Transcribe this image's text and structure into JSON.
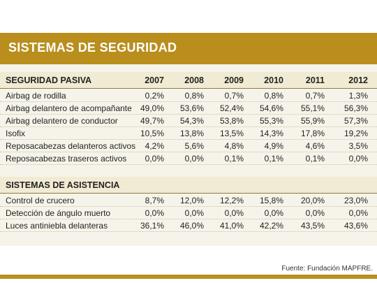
{
  "title": "SISTEMAS DE SEGURIDAD",
  "source": "Fuente: Fundación MAPFRE.",
  "chart_data": {
    "type": "table",
    "years": [
      "2007",
      "2008",
      "2009",
      "2010",
      "2011",
      "2012"
    ],
    "sections": [
      {
        "name": "SEGURIDAD PASIVA",
        "rows": [
          {
            "label": "Airbag de rodilla",
            "values": [
              "0,2%",
              "0,8%",
              "0,7%",
              "0,8%",
              "0,7%",
              "1,3%"
            ]
          },
          {
            "label": "Airbag delantero de acompañante",
            "values": [
              "49,0%",
              "53,6%",
              "52,4%",
              "54,6%",
              "55,1%",
              "56,3%"
            ]
          },
          {
            "label": "Airbag delantero  de conductor",
            "values": [
              "49,7%",
              "54,3%",
              "53,8%",
              "55,3%",
              "55,9%",
              "57,3%"
            ]
          },
          {
            "label": "Isofix",
            "values": [
              "10,5%",
              "13,8%",
              "13,5%",
              "14,3%",
              "17,8%",
              "19,2%"
            ]
          },
          {
            "label": "Reposacabezas delanteros activos",
            "values": [
              "4,2%",
              "5,6%",
              "4,8%",
              "4,9%",
              "4,6%",
              "3,5%"
            ]
          },
          {
            "label": "Reposacabezas traseros activos",
            "values": [
              "0,0%",
              "0,0%",
              "0,1%",
              "0,1%",
              "0,1%",
              "0,0%"
            ]
          }
        ]
      },
      {
        "name": "SISTEMAS DE ASISTENCIA",
        "rows": [
          {
            "label": "Control de crucero",
            "values": [
              "8,7%",
              "12,0%",
              "12,2%",
              "15,8%",
              "20,0%",
              "23,0%"
            ]
          },
          {
            "label": "Detección de ángulo muerto",
            "values": [
              "0,0%",
              "0,0%",
              "0,0%",
              "0,0%",
              "0,0%",
              "0,0%"
            ]
          },
          {
            "label": "Luces antiniebla delanteras",
            "values": [
              "36,1%",
              "46,0%",
              "41,0%",
              "42,2%",
              "43,5%",
              "43,6%"
            ]
          }
        ]
      }
    ]
  },
  "colors": {
    "accent": "#b98e1d",
    "header_fill": "#f1ebd3",
    "panel": "#f6f4ea"
  }
}
